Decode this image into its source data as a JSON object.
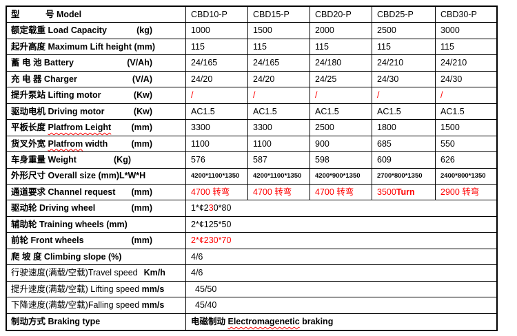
{
  "colors": {
    "accent_red": "#ff0000",
    "grid": "#000000",
    "background": "#ffffff"
  },
  "table": {
    "columns": [
      "CBD10-P",
      "CBD15-P",
      "CBD20-P",
      "CBD25-P",
      "CBD30-P"
    ],
    "rows": [
      {
        "cn": "型　　　号",
        "en": " Model",
        "values": [
          "CBD10-P",
          "CBD15-P",
          "CBD20-P",
          "CBD25-P",
          "CBD30-P"
        ]
      },
      {
        "cn": "额定载重",
        "en": " Load Capacity",
        "unit": "(kg)",
        "values": [
          "1000",
          "1500",
          "2000",
          "2500",
          "3000"
        ]
      },
      {
        "cn": "起升高度",
        "en": " Maximum Lift height (mm)",
        "values": [
          "115",
          "115",
          "115",
          "115",
          "115"
        ]
      },
      {
        "cn": "蓄 电 池",
        "en": " Battery",
        "unit": "(V/Ah)",
        "values": [
          "24/165",
          "24/165",
          "24/180",
          "24/210",
          "24/210"
        ]
      },
      {
        "cn": "充 电 器",
        "en": " Charger",
        "unit": "(V/A)",
        "values": [
          "24/20",
          "24/20",
          "24/25",
          "24/30",
          "24/30"
        ]
      },
      {
        "cn": "提升泵站",
        "en": " Lifting motor",
        "unit": "(Kw)",
        "values": [
          "/",
          "/",
          "/",
          "/",
          "/"
        ]
      },
      {
        "cn": "驱动电机",
        "en": " Driving motor",
        "unit": "(Kw)",
        "values": [
          "AC1.5",
          "AC1.5",
          "AC1.5",
          "AC1.5",
          "AC1.5"
        ]
      },
      {
        "cn": "平板长度 ",
        "en": "Platfrom Leight",
        "unit": "(mm)",
        "values": [
          "3300",
          "3300",
          "2500",
          "1800",
          "1500"
        ]
      },
      {
        "cn": "货叉外宽 ",
        "en_wavy": "Platfrom",
        "en": " width",
        "unit": "(mm)",
        "values": [
          "1100",
          "1100",
          "900",
          "685",
          "550"
        ]
      },
      {
        "cn": "车身重量",
        "en": " Weight",
        "unit": "(Kg)",
        "values": [
          "576",
          "587",
          "598",
          "609",
          "626"
        ]
      },
      {
        "cn": "外形尺寸",
        "en": " Overall size (mm)L*W*H",
        "values": [
          "4200*1100*1350",
          "4200*1100*1350",
          "4200*900*1350",
          "2700*800*1350",
          "2400*800*1350"
        ]
      },
      {
        "cn": "通道要求",
        "en": " Channel request",
        "unit": "(mm)",
        "values": [
          "4700 转弯",
          "4700 转弯",
          "4700 转弯",
          "3500",
          "2900 转弯"
        ],
        "value4_bold": "Turn"
      },
      {
        "cn": "驱动轮",
        "en": " Driving wheel",
        "unit": "(mm)",
        "value_p1": "1*¢2",
        "value_red": "3",
        "value_p2": "0*80"
      },
      {
        "cn": "辅助轮",
        "en": " Training wheels (mm)",
        "value": "2*¢125*50"
      },
      {
        "cn": "前轮",
        "en": " Front wheels",
        "unit": "(mm)",
        "value": "2*¢230*70"
      },
      {
        "cn": "爬 坡 度",
        "en": " Climbing slope (%)",
        "value": "4/6"
      },
      {
        "cn": "行驶速度(满载/空载)",
        "en": "Travel speed",
        "unit": "Km/h",
        "value": "4/6"
      },
      {
        "cn": "提升速度(满载/空载) ",
        "en": "Lifting speed ",
        "unit": "mm/s",
        "value": "45/50"
      },
      {
        "cn": "下降速度(满载/空载)",
        "en": "Falling speed ",
        "unit": "mm/s",
        "value": "45/40"
      },
      {
        "cn": "制动方式",
        "en": " Braking type",
        "value_cn": "电磁制动 ",
        "value_wavy": "Electromagenetic",
        "value_rest": " braking"
      }
    ]
  }
}
